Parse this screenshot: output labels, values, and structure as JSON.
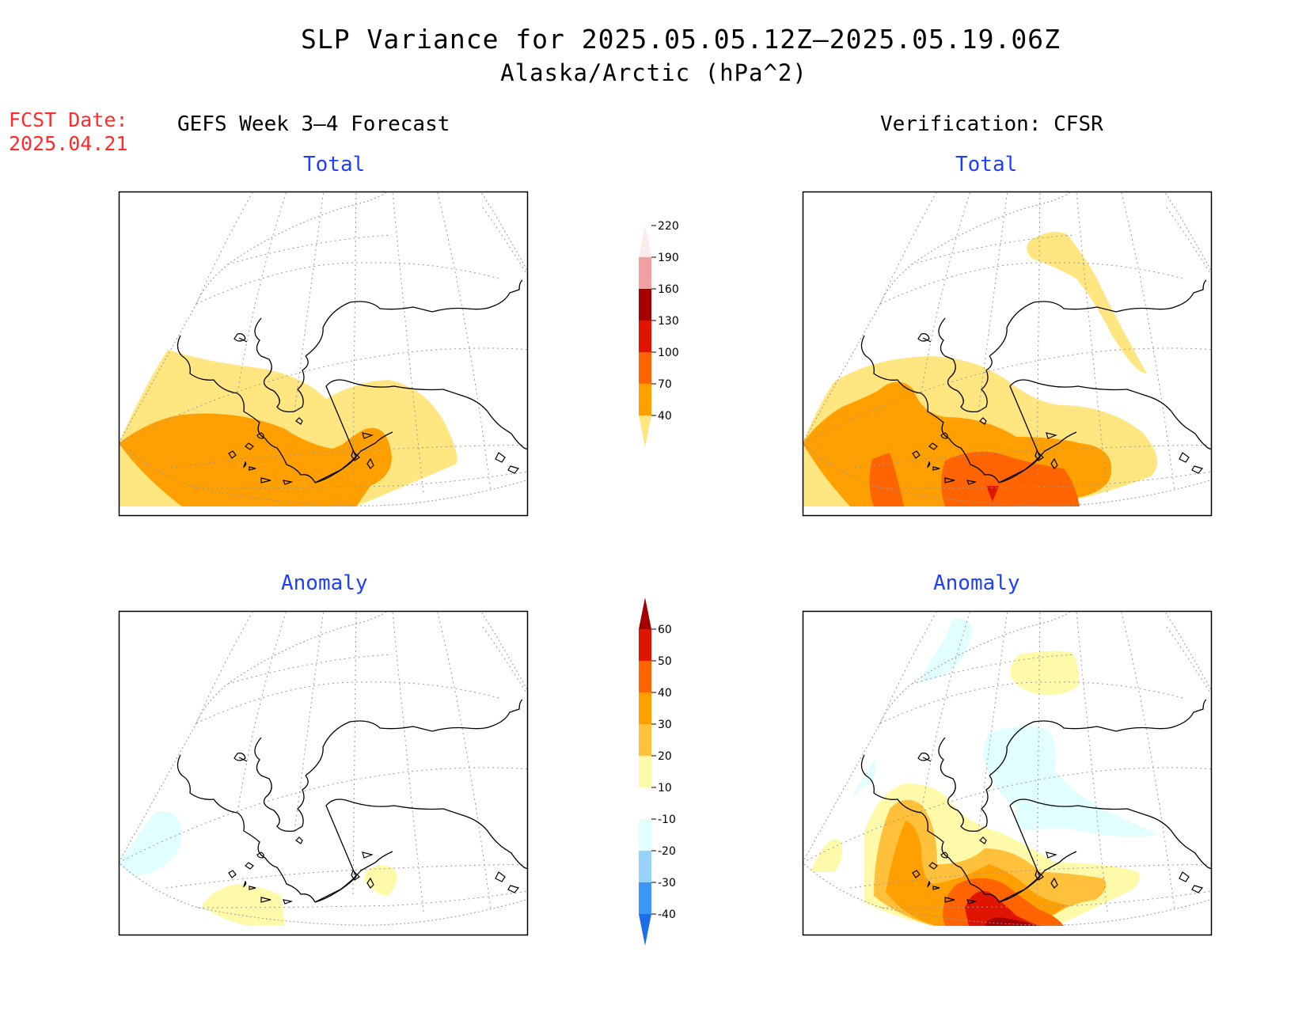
{
  "title": {
    "line1": "SLP Variance for 2025.05.05.12Z–2025.05.19.06Z",
    "line2": "Alaska/Arctic (hPa^2)"
  },
  "fcst_date": {
    "label": "FCST Date:",
    "value": "2025.04.21"
  },
  "columns": {
    "left": "GEFS Week 3–4 Forecast",
    "right": "Verification: CFSR"
  },
  "panels": {
    "forecast_total": {
      "label": "Total"
    },
    "verify_total": {
      "label": "Total"
    },
    "forecast_anomaly": {
      "label": "Anomaly"
    },
    "verify_anomaly": {
      "label": "Anomaly"
    }
  },
  "colorbar_total": {
    "levels": [
      "40",
      "70",
      "100",
      "130",
      "160",
      "190",
      "220"
    ],
    "colors": [
      "#ffe680",
      "#ffa000",
      "#ff6400",
      "#e11400",
      "#a50000",
      "#f0a0a0",
      "#ffeaea"
    ]
  },
  "colorbar_anomaly": {
    "levels": [
      "-40",
      "-30",
      "-20",
      "-10",
      "10",
      "20",
      "30",
      "40",
      "50",
      "60"
    ],
    "colors": [
      "#1e6eeb",
      "#3c96f5",
      "#96d2fa",
      "#e1ffff",
      "#ffffff",
      "#fffaaa",
      "#ffc03c",
      "#ffa000",
      "#ff6400",
      "#e11400",
      "#a50000"
    ]
  },
  "palette": {
    "yellow": "#ffe680",
    "orange": "#ffa000",
    "dark_orange": "#ff6400",
    "red": "#e11400",
    "dark_red": "#a50000",
    "light_yellow": "#fffaaa",
    "light_orange": "#ffc03c",
    "light_cyan": "#e1ffff"
  }
}
